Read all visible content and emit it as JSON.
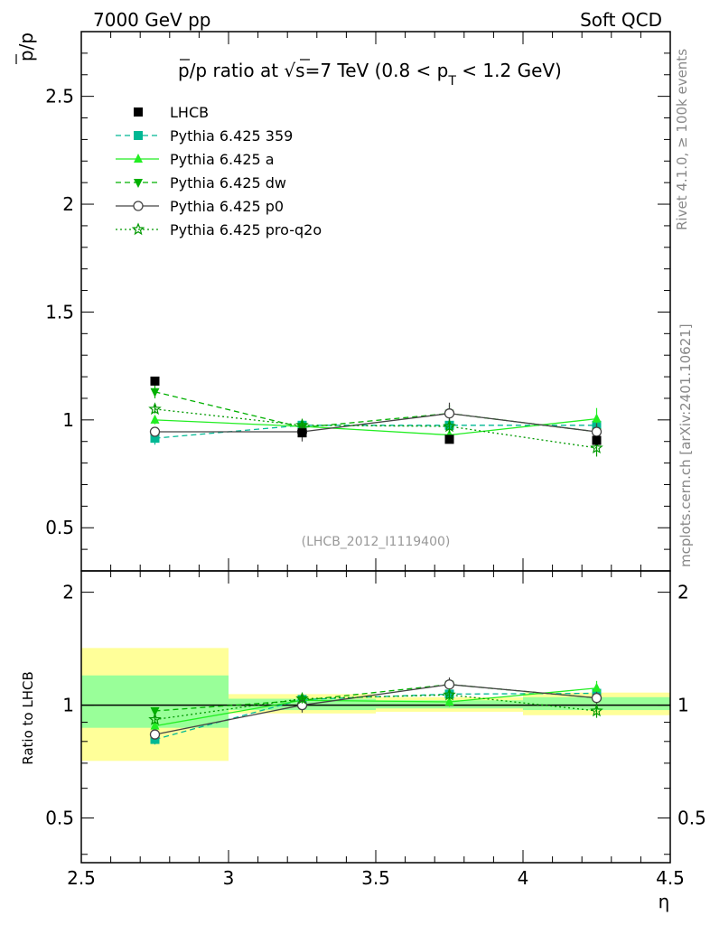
{
  "header": {
    "left": "7000 GeV pp",
    "right": "Soft QCD"
  },
  "side": {
    "rivet": "Rivet 4.1.0, ≥ 100k events",
    "mcplots": "mcplots.cern.ch [arXiv:2401.10621]"
  },
  "colors": {
    "data": "#000000",
    "p359": "#00b894",
    "a": "#22ee22",
    "dw": "#00b000",
    "p0": "#444444",
    "q2o": "#009900",
    "band_outer": "#ffff99",
    "band_inner": "#99ff99"
  },
  "chart_data": [
    {
      "type": "line",
      "title": "p̅/p ratio at √s=7 TeV (0.8 < p_T < 1.2 GeV)",
      "title_parts": {
        "lead": "p/p ratio at ",
        "sqrt": "√",
        "s_eq": "s=7 TeV (0.8 < p",
        "sub": "T",
        "tail": " < 1.2 GeV)"
      },
      "ylabel": "p/p",
      "watermark": "(LHCB_2012_I1119400)",
      "xlim": [
        2.5,
        4.5
      ],
      "ylim": [
        0.3,
        2.8
      ],
      "yticks": [
        0.5,
        1,
        1.5,
        2,
        2.5
      ],
      "ytick_labels": [
        "0.5",
        "1",
        "1.5",
        "2",
        "2.5"
      ],
      "x": [
        2.75,
        3.25,
        3.75,
        4.25
      ],
      "data": {
        "name": "LHCB",
        "values": [
          1.18,
          0.94,
          0.91,
          0.905
        ],
        "errors": [
          0.01,
          0.01,
          0.01,
          0.01
        ]
      },
      "series": [
        {
          "name": "Pythia 6.425 359",
          "key": "p359",
          "values": [
            0.915,
            0.975,
            0.975,
            0.975
          ],
          "errors": [
            0.03,
            0.025,
            0.03,
            0.03
          ],
          "dash": "6,4",
          "marker": "square"
        },
        {
          "name": "Pythia 6.425 a",
          "key": "a",
          "values": [
            1.0,
            0.97,
            0.93,
            1.005
          ],
          "errors": [
            0.02,
            0.03,
            0.03,
            0.05
          ],
          "dash": "",
          "marker": "triangle-up"
        },
        {
          "name": "Pythia 6.425 dw",
          "key": "dw",
          "values": [
            1.13,
            0.965,
            1.03,
            0.945
          ],
          "errors": [
            0.03,
            0.03,
            0.04,
            0.04
          ],
          "dash": "6,4",
          "marker": "triangle-down"
        },
        {
          "name": "Pythia 6.425 p0",
          "key": "p0",
          "values": [
            0.945,
            0.945,
            1.03,
            0.945
          ],
          "errors": [
            0.02,
            0.045,
            0.05,
            0.04
          ],
          "dash": "",
          "marker": "circle"
        },
        {
          "name": "Pythia 6.425 pro-q2o",
          "key": "q2o",
          "values": [
            1.05,
            0.975,
            0.97,
            0.87
          ],
          "errors": [
            0.02,
            0.03,
            0.03,
            0.04
          ],
          "dash": "2,3",
          "marker": "star"
        }
      ]
    },
    {
      "type": "line",
      "ylabel": "Ratio to LHCB",
      "xlabel": "η",
      "xlim": [
        2.5,
        4.5
      ],
      "ylim": [
        0.38,
        2.28
      ],
      "log_y": true,
      "yticks": [
        0.5,
        1,
        2
      ],
      "ytick_labels": [
        "0.5",
        "1",
        "2"
      ],
      "xticks": [
        2.5,
        3,
        3.5,
        4,
        4.5
      ],
      "xtick_labels": [
        "2.5",
        "3",
        "3.5",
        "4",
        "4.5"
      ],
      "bands": [
        {
          "x0": 2.5,
          "x1": 3.0,
          "outer": [
            0.71,
            1.42
          ],
          "inner": [
            0.87,
            1.2
          ]
        },
        {
          "x0": 3.0,
          "x1": 3.5,
          "outer": [
            0.95,
            1.07
          ],
          "inner": [
            0.97,
            1.04
          ]
        },
        {
          "x0": 3.5,
          "x1": 4.0,
          "outer": [
            0.96,
            1.05
          ],
          "inner": [
            0.98,
            1.03
          ]
        },
        {
          "x0": 4.0,
          "x1": 4.5,
          "outer": [
            0.94,
            1.08
          ],
          "inner": [
            0.97,
            1.05
          ]
        }
      ],
      "x": [
        2.75,
        3.25,
        3.75,
        4.25
      ],
      "series": [
        {
          "name": "Pythia 6.425 359",
          "key": "p359",
          "values": [
            0.81,
            1.035,
            1.07,
            1.075
          ],
          "errors": [
            0.025,
            0.03,
            0.03,
            0.03
          ],
          "dash": "6,4",
          "marker": "square"
        },
        {
          "name": "Pythia 6.425 a",
          "key": "a",
          "values": [
            0.88,
            1.03,
            1.02,
            1.11
          ],
          "errors": [
            0.02,
            0.03,
            0.03,
            0.05
          ],
          "dash": "",
          "marker": "triangle-up"
        },
        {
          "name": "Pythia 6.425 dw",
          "key": "dw",
          "values": [
            0.965,
            1.03,
            1.135,
            1.045
          ],
          "errors": [
            0.02,
            0.03,
            0.04,
            0.04
          ],
          "dash": "6,4",
          "marker": "triangle-down"
        },
        {
          "name": "Pythia 6.425 p0",
          "key": "p0",
          "values": [
            0.835,
            1.0,
            1.135,
            1.045
          ],
          "errors": [
            0.02,
            0.045,
            0.05,
            0.04
          ],
          "dash": "",
          "marker": "circle"
        },
        {
          "name": "Pythia 6.425 pro-q2o",
          "key": "q2o",
          "values": [
            0.915,
            1.04,
            1.065,
            0.965
          ],
          "errors": [
            0.02,
            0.03,
            0.03,
            0.04
          ],
          "dash": "2,3",
          "marker": "star"
        }
      ]
    }
  ]
}
